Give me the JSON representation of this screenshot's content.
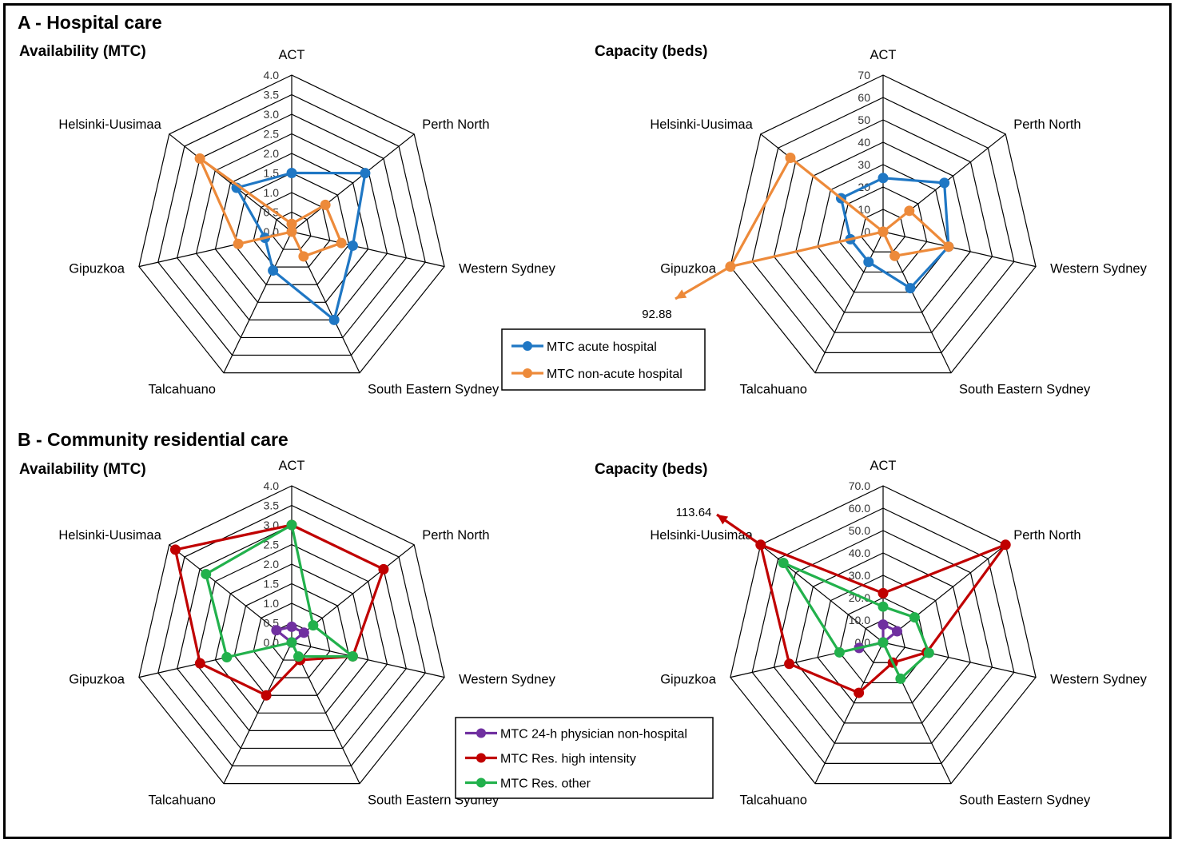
{
  "sections": [
    {
      "title": "A - Hospital care"
    },
    {
      "title": "B - Community residential care"
    }
  ],
  "axes": [
    "ACT",
    "Perth North",
    "Western Sydney",
    "South Eastern Sydney",
    "Talcahuano",
    "Gipuzkoa",
    "Helsinki-Uusimaa"
  ],
  "chart_data": [
    {
      "type": "radar",
      "section": "A - Hospital care",
      "title": "Availability (MTC)",
      "categories": [
        "ACT",
        "Perth North",
        "Western Sydney",
        "South Eastern Sydney",
        "Talcahuano",
        "Gipuzkoa",
        "Helsinki-Uusimaa"
      ],
      "ylim": [
        0,
        4
      ],
      "ticks": [
        "0.0",
        "0.5",
        "1.0",
        "1.5",
        "2.0",
        "2.5",
        "3.0",
        "3.5",
        "4.0"
      ],
      "grid": true,
      "series": [
        {
          "name": "MTC acute hospital",
          "color": "#1f77c4",
          "values": [
            1.5,
            2.4,
            1.6,
            2.5,
            1.1,
            0.7,
            1.8
          ]
        },
        {
          "name": "MTC non-acute hospital",
          "color": "#ed8a3a",
          "values": [
            0.2,
            1.1,
            1.3,
            0.7,
            0,
            1.4,
            3.0
          ]
        }
      ]
    },
    {
      "type": "radar",
      "section": "A - Hospital care",
      "title": "Capacity (beds)",
      "categories": [
        "ACT",
        "Perth North",
        "Western Sydney",
        "South Eastern Sydney",
        "Talcahuano",
        "Gipuzkoa",
        "Helsinki-Uusimaa"
      ],
      "ylim": [
        0,
        70
      ],
      "ticks": [
        "0",
        "10",
        "20",
        "30",
        "40",
        "50",
        "60",
        "70"
      ],
      "grid": true,
      "series": [
        {
          "name": "MTC acute hospital",
          "color": "#1f77c4",
          "values": [
            24,
            35,
            30,
            28,
            15,
            15,
            24
          ]
        },
        {
          "name": "MTC non-acute hospital",
          "color": "#ed8a3a",
          "values": [
            0,
            15,
            30,
            12,
            0,
            92.88,
            53
          ]
        }
      ],
      "annotations": [
        {
          "text": "92.88",
          "category": "Gipuzkoa",
          "series": "MTC non-acute hospital"
        }
      ]
    },
    {
      "type": "radar",
      "section": "B - Community residential care",
      "title": "Availability (MTC)",
      "categories": [
        "ACT",
        "Perth North",
        "Western Sydney",
        "South Eastern Sydney",
        "Talcahuano",
        "Gipuzkoa",
        "Helsinki-Uusimaa"
      ],
      "ylim": [
        0,
        4
      ],
      "ticks": [
        "0.0",
        "0.5",
        "1.0",
        "1.5",
        "2.0",
        "2.5",
        "3.0",
        "3.5",
        "4.0"
      ],
      "grid": true,
      "series": [
        {
          "name": "MTC 24-h physician non-hospital",
          "color": "#7030a0",
          "values": [
            0.4,
            0.4,
            0,
            0,
            0,
            0,
            0.5
          ]
        },
        {
          "name": "MTC Res. high intensity",
          "color": "#c00000",
          "values": [
            3.0,
            3.0,
            1.6,
            0.5,
            1.5,
            2.4,
            3.8
          ]
        },
        {
          "name": "MTC Res. other",
          "color": "#22b14c",
          "values": [
            3.0,
            0.7,
            1.6,
            0.4,
            0,
            1.7,
            2.8
          ]
        }
      ]
    },
    {
      "type": "radar",
      "section": "B - Community residential care",
      "title": "Capacity (beds)",
      "categories": [
        "ACT",
        "Perth North",
        "Western Sydney",
        "South Eastern Sydney",
        "Talcahuano",
        "Gipuzkoa",
        "Helsinki-Uusimaa"
      ],
      "ylim": [
        0,
        70
      ],
      "ticks": [
        "0.0",
        "10.0",
        "20.0",
        "30.0",
        "40.0",
        "50.0",
        "60.0",
        "70.0"
      ],
      "grid": true,
      "series": [
        {
          "name": "MTC 24-h physician non-hospital",
          "color": "#7030a0",
          "values": [
            8,
            8,
            0,
            0,
            0,
            11,
            0
          ]
        },
        {
          "name": "MTC Res. high intensity",
          "color": "#c00000",
          "values": [
            22,
            72,
            20,
            10,
            25,
            43,
            113.64
          ]
        },
        {
          "name": "MTC Res. other",
          "color": "#22b14c",
          "values": [
            16,
            18,
            21,
            18,
            0,
            20,
            57
          ]
        }
      ],
      "annotations": [
        {
          "text": "113.64",
          "category": "Helsinki-Uusimaa",
          "series": "MTC Res. high intensity"
        }
      ]
    }
  ],
  "legends": [
    {
      "items": [
        {
          "label": "MTC acute hospital",
          "color": "#1f77c4"
        },
        {
          "label": "MTC non-acute hospital",
          "color": "#ed8a3a"
        }
      ]
    },
    {
      "items": [
        {
          "label": "MTC 24-h physician non-hospital",
          "color": "#7030a0"
        },
        {
          "label": "MTC Res. high intensity",
          "color": "#c00000"
        },
        {
          "label": "MTC Res. other",
          "color": "#22b14c"
        }
      ]
    }
  ]
}
